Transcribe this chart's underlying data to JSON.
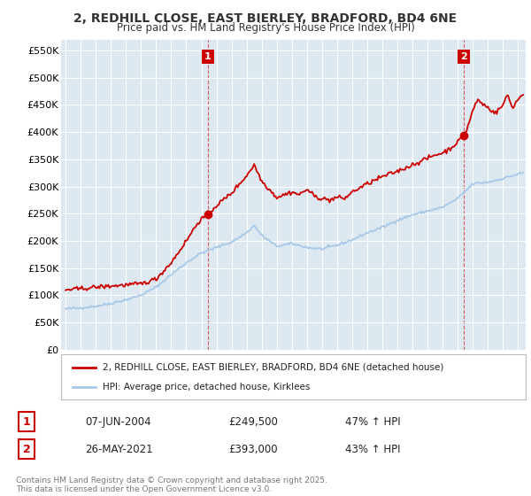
{
  "title_line1": "2, REDHILL CLOSE, EAST BIERLEY, BRADFORD, BD4 6NE",
  "title_line2": "Price paid vs. HM Land Registry's House Price Index (HPI)",
  "ylim": [
    0,
    570000
  ],
  "yticks": [
    0,
    50000,
    100000,
    150000,
    200000,
    250000,
    300000,
    350000,
    400000,
    450000,
    500000,
    550000
  ],
  "ytick_labels": [
    "£0",
    "£50K",
    "£100K",
    "£150K",
    "£200K",
    "£250K",
    "£300K",
    "£350K",
    "£400K",
    "£450K",
    "£500K",
    "£550K"
  ],
  "xlim_start": 1994.7,
  "xlim_end": 2025.5,
  "xticks": [
    1995,
    1996,
    1997,
    1998,
    1999,
    2000,
    2001,
    2002,
    2003,
    2004,
    2005,
    2006,
    2007,
    2008,
    2009,
    2010,
    2011,
    2012,
    2013,
    2014,
    2015,
    2016,
    2017,
    2018,
    2019,
    2020,
    2021,
    2022,
    2023,
    2024,
    2025
  ],
  "hpi_color": "#a8c8e8",
  "price_color": "#cc0000",
  "sale1_x": 2004.44,
  "sale1_y": 249500,
  "sale2_x": 2021.4,
  "sale2_y": 393000,
  "legend_line1": "2, REDHILL CLOSE, EAST BIERLEY, BRADFORD, BD4 6NE (detached house)",
  "legend_line2": "HPI: Average price, detached house, Kirklees",
  "annotation1_box": "1",
  "annotation1_date": "07-JUN-2004",
  "annotation1_price": "£249,500",
  "annotation1_hpi": "47% ↑ HPI",
  "annotation2_box": "2",
  "annotation2_date": "26-MAY-2021",
  "annotation2_price": "£393,000",
  "annotation2_hpi": "43% ↑ HPI",
  "footer": "Contains HM Land Registry data © Crown copyright and database right 2025.\nThis data is licensed under the Open Government Licence v3.0.",
  "bg_color": "#ffffff",
  "plot_bg_color": "#dde8f0",
  "grid_color": "#ffffff",
  "title_color": "#333333"
}
